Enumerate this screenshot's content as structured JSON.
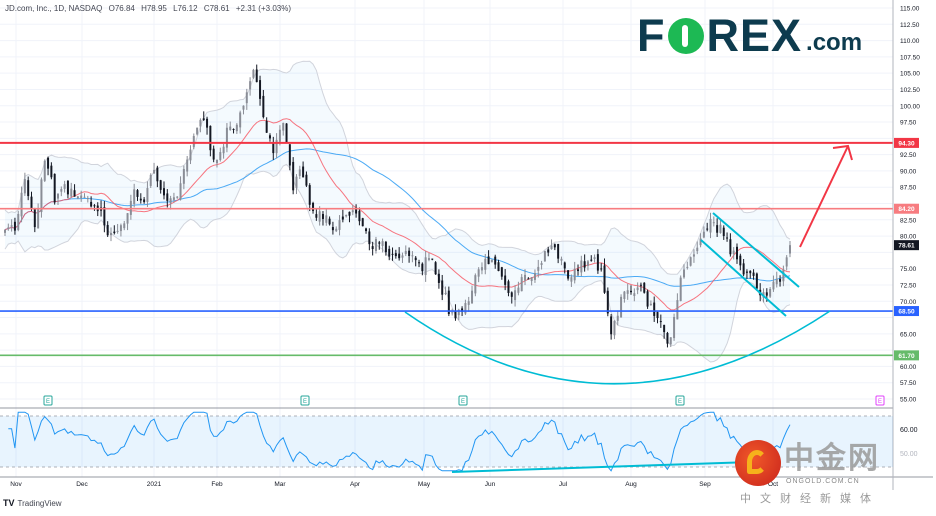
{
  "header": {
    "symbol": "JD.com, Inc., 1D, NASDAQ",
    "open": "O76.84",
    "high": "H78.95",
    "low": "L76.12",
    "close": "C78.61",
    "change": "+2.31 (+3.03%)"
  },
  "branding": {
    "forex_logo": "FOREX.com",
    "tradingview": "TradingView",
    "watermark_cn": "中金网",
    "watermark_url": "ONGOLD.COM.CN",
    "watermark_sub": "中文财经新媒体"
  },
  "colors": {
    "resistance_high": "#f23645",
    "resistance_mid": "#f77c80",
    "support_blue": "#2962ff",
    "support_green": "#66bb6a",
    "pattern_cyan": "#00bcd4",
    "sma_fast": "#f7525f",
    "sma_slow": "#2196f3",
    "rsi_line": "#2196f3",
    "up_candle": "#8a8d96",
    "down_candle": "#131722"
  },
  "chart_data": {
    "type": "candlestick",
    "title": "JD.com, Inc., 1D, NASDAQ",
    "x_ticks": [
      "Nov",
      "Dec",
      "2021",
      "Feb",
      "Mar",
      "Apr",
      "May",
      "Jun",
      "Jul",
      "Aug",
      "Sep",
      "Oct"
    ],
    "y_ticks": [
      "115.00",
      "112.50",
      "110.00",
      "107.50",
      "105.00",
      "102.50",
      "100.00",
      "97.50",
      "95.00",
      "92.50",
      "90.00",
      "87.50",
      "85.00",
      "82.50",
      "80.00",
      "77.50",
      "75.00",
      "72.50",
      "70.00",
      "67.50",
      "65.00",
      "62.50",
      "60.00",
      "57.50",
      "55.00"
    ],
    "ylim": [
      55,
      115
    ],
    "approx_closes_every_3_days": [
      81,
      82,
      90,
      80,
      91,
      86,
      88,
      87,
      85,
      83.5,
      82,
      80.5,
      83,
      86,
      85,
      91,
      87,
      86,
      89,
      95,
      99,
      92,
      95,
      96,
      99,
      106,
      99,
      93,
      96,
      87,
      90,
      84,
      84,
      80,
      82,
      85,
      82,
      79,
      78,
      76,
      78,
      78,
      76,
      75,
      71,
      68.5,
      69,
      72.5,
      75,
      76,
      74,
      72,
      73,
      73,
      75,
      79,
      77,
      73,
      75,
      75.5,
      76,
      66,
      70,
      71,
      71,
      70,
      67,
      63.5,
      73,
      76,
      80,
      83,
      81,
      77,
      75.5,
      75.5,
      72,
      71,
      73,
      78.61
    ],
    "last_price": "78.61",
    "horizontal_levels": [
      {
        "label": "94.30",
        "value": 94.3,
        "color": "#f23645"
      },
      {
        "label": "84.20",
        "value": 84.2,
        "color": "#f77c80"
      },
      {
        "label": "68.50",
        "value": 68.5,
        "color": "#2962ff"
      },
      {
        "label": "61.70",
        "value": 61.7,
        "color": "#66bb6a"
      }
    ],
    "indicators": [
      "SMA 20",
      "SMA 50",
      "Bollinger Bands (20,2)",
      "RSI 14"
    ],
    "rsi": {
      "y_ticks": [
        "60.00",
        "50.00"
      ],
      "bands": [
        70,
        30
      ]
    },
    "earnings_markers": [
      "E",
      "E",
      "E",
      "E",
      "E"
    ],
    "annotations": [
      "rounded-bottom arc",
      "descending channel",
      "breakout arrow to 94.30",
      "RSI rising trendline"
    ]
  }
}
